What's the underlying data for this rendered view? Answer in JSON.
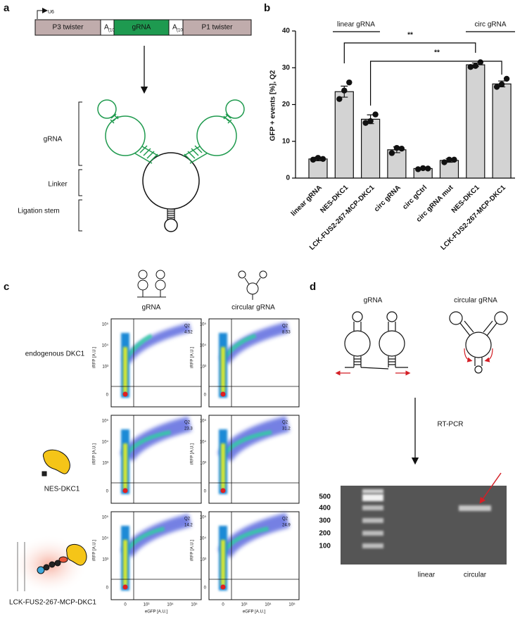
{
  "panel_a": {
    "letter": "a",
    "promoter": "U6",
    "construct": [
      {
        "label": "P3 twister"
      },
      {
        "label": "A",
        "sub": "(10)"
      },
      {
        "label": "gRNA"
      },
      {
        "label": "A",
        "sub": "(10)"
      },
      {
        "label": "P1 twister"
      }
    ],
    "structure_labels": [
      "gRNA",
      "Linker",
      "Ligation stem"
    ]
  },
  "chart_data": {
    "type": "bar",
    "letter": "b",
    "categories": [
      "linear gRNA",
      "NES-DKC1",
      "LCK-FUS2-267-MCP-DKC1",
      "circ gRNA",
      "circ gCtrl",
      "circ gRNA mut",
      "NES-DKC1",
      "LCK-FUS2-267-MCP-DKC1"
    ],
    "values": [
      5.2,
      23.5,
      16,
      7.7,
      2.6,
      4.8,
      30.8,
      25.6
    ],
    "errors": [
      0.5,
      1.5,
      1.2,
      0.8,
      0.2,
      0.5,
      0.5,
      0.8
    ],
    "points": [
      [
        5.0,
        5.5,
        5.2
      ],
      [
        21.5,
        23.8,
        26
      ],
      [
        15,
        15.5,
        17.3
      ],
      [
        6.8,
        8.2,
        8
      ],
      [
        2.4,
        2.7,
        2.6
      ],
      [
        4.3,
        5,
        5
      ],
      [
        30.2,
        30.5,
        31.5
      ],
      [
        24.8,
        25.5,
        27
      ]
    ],
    "color": "#d3d3d3",
    "ylabel": "GFP + events [%], Q2",
    "ylim": [
      0,
      40
    ],
    "yticks": [
      0,
      10,
      20,
      30,
      40
    ],
    "group_labels": [
      "linear gRNA",
      "circ gRNA"
    ],
    "significance": [
      "**",
      "**"
    ]
  },
  "panel_c": {
    "letter": "c",
    "columns": [
      "gRNA",
      "circular gRNA"
    ],
    "rows": [
      "endogenous DKC1",
      "NES-DKC1",
      "LCK-FUS2-267-MCP-DKC1"
    ],
    "y_axis_label": "iRFP [A.U.]",
    "x_axis_label": "eGFP [A.U.]",
    "y_ticks": [
      "10⁵",
      "10⁴",
      "10³",
      "0"
    ],
    "x_ticks": [
      "0",
      "10³",
      "10⁴",
      "10⁵"
    ],
    "gate_label": "Q2",
    "q2_values": [
      [
        "4.52",
        "8.53"
      ],
      [
        "23.3",
        "31.2"
      ],
      [
        "14.2",
        "24.9"
      ]
    ]
  },
  "panel_d": {
    "letter": "d",
    "labels": [
      "gRNA",
      "circular gRNA"
    ],
    "method": "RT-PCR",
    "ladder": [
      500,
      400,
      300,
      200,
      100
    ],
    "lanes": [
      "linear",
      "circular"
    ]
  }
}
